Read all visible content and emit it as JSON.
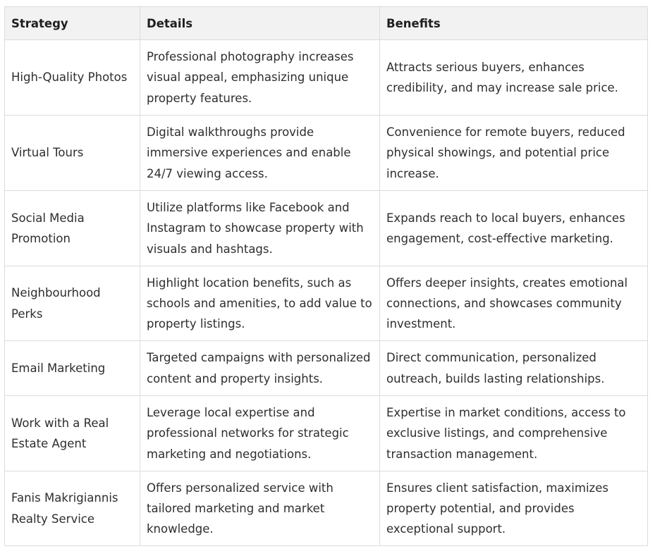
{
  "table": {
    "headers": [
      "Strategy",
      "Details",
      "Benefits"
    ],
    "rows": [
      {
        "strategy": "High-Quality Photos",
        "details": "Professional photography increases visual appeal, emphasizing unique property features.",
        "benefits": "Attracts serious buyers, enhances credibility, and may increase sale price."
      },
      {
        "strategy": "Virtual Tours",
        "details": "Digital walkthroughs provide immersive experiences and enable 24/7 viewing access.",
        "benefits": "Convenience for remote buyers, reduced physical showings, and potential price increase."
      },
      {
        "strategy": "Social Media Promotion",
        "details": "Utilize platforms like Facebook and Instagram to showcase property with visuals and hashtags.",
        "benefits": "Expands reach to local buyers, enhances engagement, cost-effective marketing."
      },
      {
        "strategy": "Neighbourhood Perks",
        "details": "Highlight location benefits, such as schools and amenities, to add value to property listings.",
        "benefits": "Offers deeper insights, creates emotional connections, and showcases community investment."
      },
      {
        "strategy": "Email Marketing",
        "details": "Targeted campaigns with personalized content and property insights.",
        "benefits": "Direct communication, personalized outreach, builds lasting relationships."
      },
      {
        "strategy": "Work with a Real Estate Agent",
        "details": "Leverage local expertise and professional networks for strategic marketing and negotiations.",
        "benefits": "Expertise in market conditions, access to exclusive listings, and comprehensive transaction management."
      },
      {
        "strategy": "Fanis Makrigiannis Realty Service",
        "details": "Offers personalized service with tailored marketing and market knowledge.",
        "benefits": "Ensures client satisfaction, maximizes property potential, and provides exceptional support."
      }
    ]
  }
}
